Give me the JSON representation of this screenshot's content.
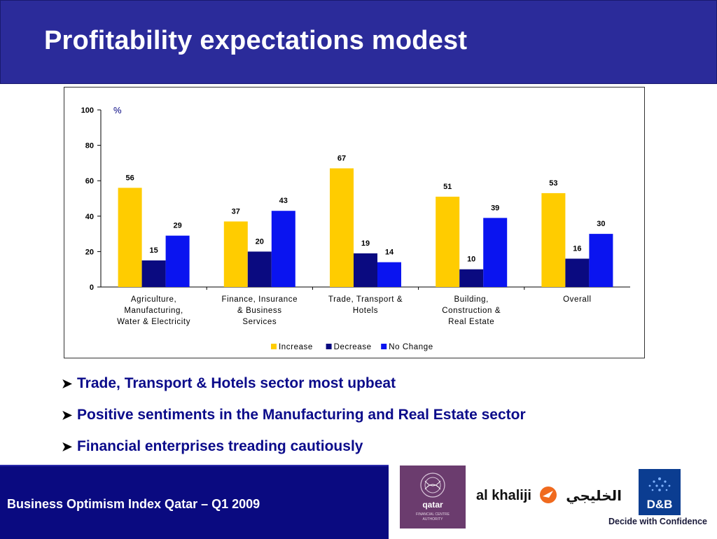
{
  "slide": {
    "title": "Profitability expectations modest"
  },
  "chart_data": {
    "type": "bar",
    "unit_label": "%",
    "ylim": [
      0,
      100
    ],
    "yticks": [
      0,
      20,
      40,
      60,
      80,
      100
    ],
    "grid": false,
    "legend_position": "bottom",
    "categories": [
      [
        "Agriculture,",
        "Manufacturing,",
        "Water & Electricity"
      ],
      [
        "Finance, Insurance",
        "& Business",
        "Services"
      ],
      [
        "Trade, Transport &",
        "Hotels"
      ],
      [
        "Building,",
        "Construction &",
        "Real Estate"
      ],
      [
        "Overall"
      ]
    ],
    "series": [
      {
        "name": "Increase",
        "color": "#ffcc00",
        "values": [
          56,
          37,
          67,
          51,
          53
        ]
      },
      {
        "name": "Decrease",
        "color": "#0a0a80",
        "values": [
          15,
          20,
          19,
          10,
          16
        ]
      },
      {
        "name": "No Change",
        "color": "#0a14f0",
        "values": [
          29,
          43,
          14,
          39,
          30
        ]
      }
    ]
  },
  "bullets": [
    "Trade, Transport & Hotels sector most upbeat",
    "Positive sentiments in the Manufacturing and Real Estate sector",
    "Financial enterprises treading cautiously"
  ],
  "footer": {
    "text": "Business Optimism Index Qatar – Q1 2009",
    "qfc_logo": {
      "line1": "qatar",
      "line2": "FINANCIAL CENTRE",
      "line3": "AUTHORITY"
    },
    "alkhaliji_logo": {
      "latin": "al khaliji",
      "arabic": "الخليجي"
    },
    "db_logo": {
      "mark": "D&B",
      "tagline": "Decide with Confidence"
    }
  },
  "colors": {
    "header_bg": "#2b2b9a",
    "footer_bg": "#0a0a80",
    "bullet_text": "#0b0b8a"
  }
}
